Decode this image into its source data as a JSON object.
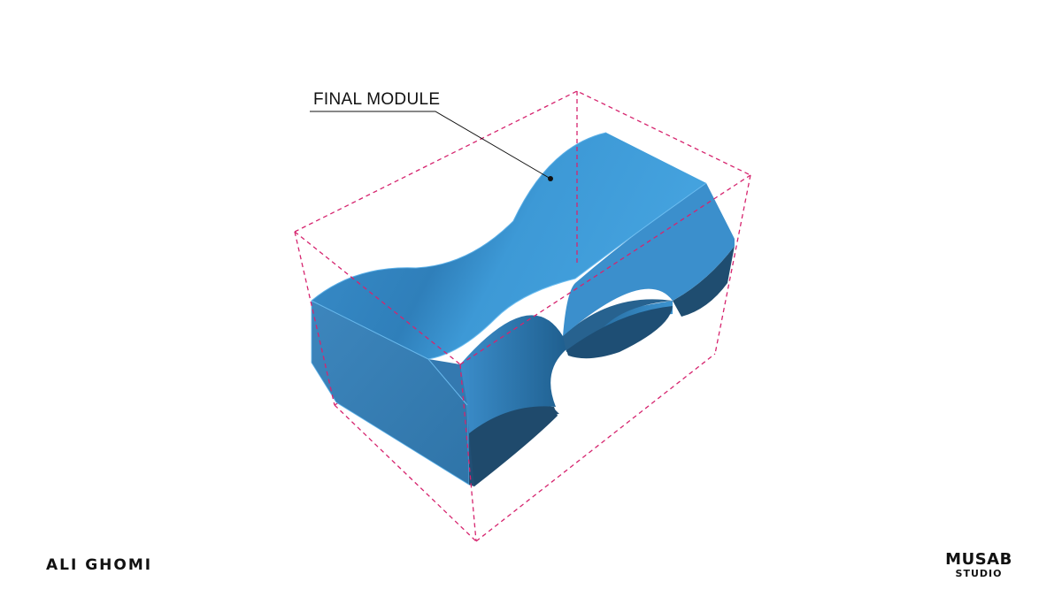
{
  "callout": {
    "label": "FINAL MODULE"
  },
  "logos": {
    "left": "ALI GHOMI",
    "right_line1": "MUSAB",
    "right_line2": "STUDIO"
  },
  "colors": {
    "module_top": "#3f9bd6",
    "module_side": "#3a82b8",
    "module_dark": "#1f4d70",
    "bounding_box": "#d6246e",
    "leader_line": "#111111"
  }
}
